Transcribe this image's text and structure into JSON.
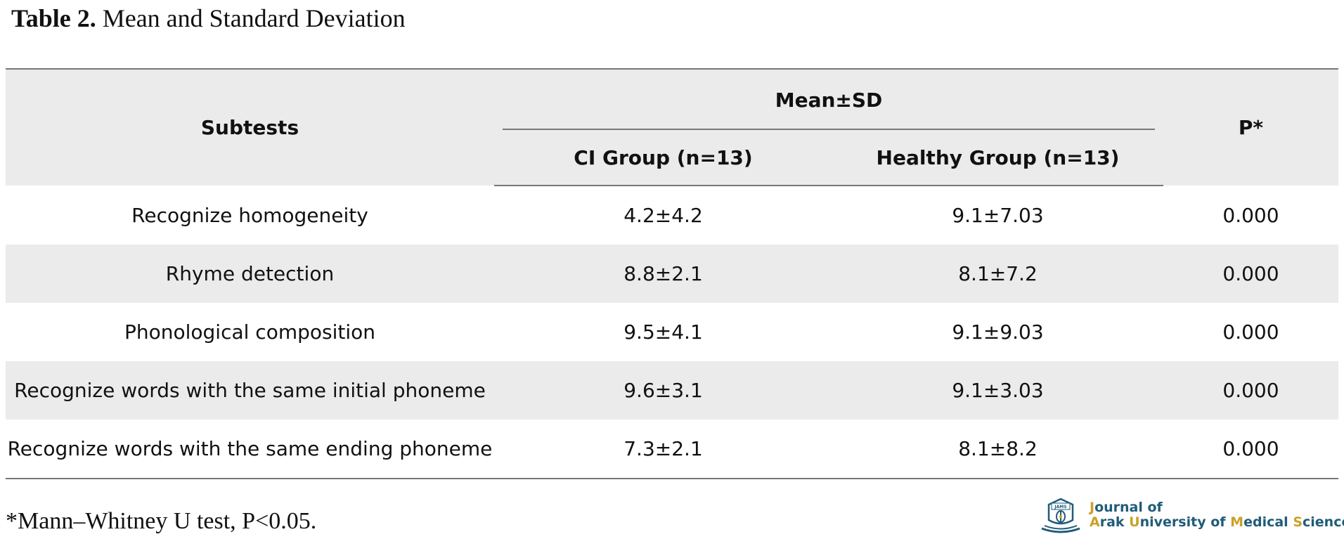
{
  "caption": {
    "label": "Table 2.",
    "text": "Mean and Standard Deviation"
  },
  "table": {
    "headers": {
      "subtests": "Subtests",
      "mean_sd": "Mean±SD",
      "ci_group": "CI Group (n=13)",
      "healthy_group": "Healthy Group (n=13)",
      "p": "P*"
    },
    "rows": [
      {
        "subtest": "Recognize homogeneity",
        "ci": "4.2±4.2",
        "healthy": "9.1±7.03",
        "p": "0.000"
      },
      {
        "subtest": "Rhyme detection",
        "ci": "8.8±2.1",
        "healthy": "8.1±7.2",
        "p": "0.000"
      },
      {
        "subtest": "Phonological composition",
        "ci": "9.5±4.1",
        "healthy": "9.1±9.03",
        "p": "0.000"
      },
      {
        "subtest": "Recognize words with the same initial phoneme",
        "ci": "9.6±3.1",
        "healthy": "9.1±3.03",
        "p": "0.000"
      },
      {
        "subtest": "Recognize words with the same ending phoneme",
        "ci": "7.3±2.1",
        "healthy": "8.1±8.2",
        "p": "0.000"
      }
    ]
  },
  "footnote": "*Mann–Whitney U test, P<0.05.",
  "journal": {
    "line1": "Journal of",
    "line2": "Arak University of Medical Sciences",
    "emblem_text": "JAMS",
    "primary_color": "#1f5c78",
    "accent_color": "#c9a227"
  }
}
